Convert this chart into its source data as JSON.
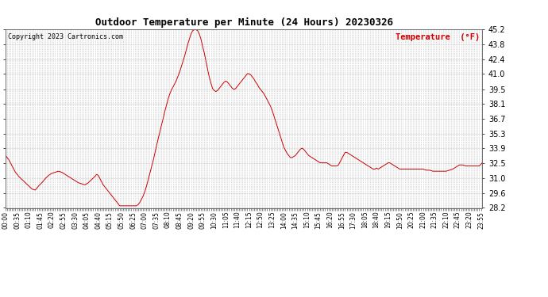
{
  "title": "Outdoor Temperature per Minute (24 Hours) 20230326",
  "copyright_text": "Copyright 2023 Cartronics.com",
  "legend_text": "Temperature  (°F)",
  "legend_color": "#cc0000",
  "line_color": "#cc0000",
  "background_color": "#ffffff",
  "grid_color": "#bbbbbb",
  "title_color": "#000000",
  "ylim": [
    28.2,
    45.2
  ],
  "yticks": [
    28.2,
    29.6,
    31.0,
    32.5,
    33.9,
    35.3,
    36.7,
    38.1,
    39.5,
    41.0,
    42.4,
    43.8,
    45.2
  ],
  "keypoints": [
    [
      0,
      33.2
    ],
    [
      10,
      32.8
    ],
    [
      20,
      32.2
    ],
    [
      30,
      31.6
    ],
    [
      40,
      31.2
    ],
    [
      50,
      30.9
    ],
    [
      60,
      30.6
    ],
    [
      70,
      30.3
    ],
    [
      80,
      30.0
    ],
    [
      90,
      29.9
    ],
    [
      100,
      30.3
    ],
    [
      110,
      30.6
    ],
    [
      120,
      31.0
    ],
    [
      130,
      31.3
    ],
    [
      140,
      31.5
    ],
    [
      150,
      31.6
    ],
    [
      160,
      31.7
    ],
    [
      170,
      31.6
    ],
    [
      180,
      31.4
    ],
    [
      190,
      31.2
    ],
    [
      200,
      31.0
    ],
    [
      210,
      30.8
    ],
    [
      220,
      30.6
    ],
    [
      230,
      30.5
    ],
    [
      240,
      30.4
    ],
    [
      250,
      30.6
    ],
    [
      260,
      30.9
    ],
    [
      270,
      31.2
    ],
    [
      275,
      31.4
    ],
    [
      280,
      31.3
    ],
    [
      285,
      31.0
    ],
    [
      290,
      30.7
    ],
    [
      295,
      30.4
    ],
    [
      300,
      30.2
    ],
    [
      305,
      30.0
    ],
    [
      310,
      29.8
    ],
    [
      315,
      29.6
    ],
    [
      320,
      29.4
    ],
    [
      325,
      29.2
    ],
    [
      330,
      29.0
    ],
    [
      335,
      28.8
    ],
    [
      340,
      28.6
    ],
    [
      345,
      28.4
    ],
    [
      370,
      28.4
    ],
    [
      395,
      28.4
    ],
    [
      400,
      28.5
    ],
    [
      405,
      28.7
    ],
    [
      410,
      29.0
    ],
    [
      415,
      29.3
    ],
    [
      420,
      29.7
    ],
    [
      425,
      30.2
    ],
    [
      430,
      30.8
    ],
    [
      435,
      31.4
    ],
    [
      440,
      32.0
    ],
    [
      445,
      32.6
    ],
    [
      450,
      33.3
    ],
    [
      455,
      34.0
    ],
    [
      460,
      34.7
    ],
    [
      465,
      35.3
    ],
    [
      470,
      36.0
    ],
    [
      475,
      36.6
    ],
    [
      480,
      37.3
    ],
    [
      485,
      37.9
    ],
    [
      490,
      38.5
    ],
    [
      495,
      39.0
    ],
    [
      500,
      39.4
    ],
    [
      505,
      39.7
    ],
    [
      510,
      40.0
    ],
    [
      515,
      40.3
    ],
    [
      520,
      40.7
    ],
    [
      525,
      41.1
    ],
    [
      530,
      41.6
    ],
    [
      535,
      42.1
    ],
    [
      540,
      42.6
    ],
    [
      545,
      43.2
    ],
    [
      550,
      43.8
    ],
    [
      555,
      44.3
    ],
    [
      560,
      44.8
    ],
    [
      565,
      45.1
    ],
    [
      570,
      45.2
    ],
    [
      575,
      45.2
    ],
    [
      580,
      45.1
    ],
    [
      585,
      44.8
    ],
    [
      590,
      44.3
    ],
    [
      595,
      43.6
    ],
    [
      600,
      43.0
    ],
    [
      605,
      42.2
    ],
    [
      610,
      41.4
    ],
    [
      615,
      40.7
    ],
    [
      620,
      40.1
    ],
    [
      625,
      39.6
    ],
    [
      630,
      39.4
    ],
    [
      635,
      39.3
    ],
    [
      640,
      39.4
    ],
    [
      645,
      39.6
    ],
    [
      650,
      39.8
    ],
    [
      655,
      40.0
    ],
    [
      660,
      40.2
    ],
    [
      665,
      40.3
    ],
    [
      670,
      40.2
    ],
    [
      675,
      40.0
    ],
    [
      680,
      39.8
    ],
    [
      685,
      39.6
    ],
    [
      690,
      39.5
    ],
    [
      695,
      39.6
    ],
    [
      700,
      39.8
    ],
    [
      705,
      40.0
    ],
    [
      710,
      40.2
    ],
    [
      715,
      40.4
    ],
    [
      720,
      40.6
    ],
    [
      725,
      40.8
    ],
    [
      730,
      41.0
    ],
    [
      735,
      41.0
    ],
    [
      740,
      40.9
    ],
    [
      745,
      40.7
    ],
    [
      750,
      40.5
    ],
    [
      755,
      40.2
    ],
    [
      760,
      40.0
    ],
    [
      765,
      39.7
    ],
    [
      770,
      39.5
    ],
    [
      775,
      39.3
    ],
    [
      780,
      39.1
    ],
    [
      785,
      38.8
    ],
    [
      790,
      38.5
    ],
    [
      795,
      38.2
    ],
    [
      800,
      37.9
    ],
    [
      805,
      37.5
    ],
    [
      810,
      37.0
    ],
    [
      815,
      36.5
    ],
    [
      820,
      36.0
    ],
    [
      825,
      35.5
    ],
    [
      830,
      35.0
    ],
    [
      835,
      34.5
    ],
    [
      840,
      34.0
    ],
    [
      845,
      33.7
    ],
    [
      850,
      33.4
    ],
    [
      855,
      33.2
    ],
    [
      860,
      33.0
    ],
    [
      865,
      33.0
    ],
    [
      870,
      33.1
    ],
    [
      875,
      33.2
    ],
    [
      880,
      33.4
    ],
    [
      885,
      33.6
    ],
    [
      890,
      33.8
    ],
    [
      895,
      33.9
    ],
    [
      900,
      33.8
    ],
    [
      905,
      33.6
    ],
    [
      910,
      33.4
    ],
    [
      915,
      33.2
    ],
    [
      920,
      33.1
    ],
    [
      925,
      33.0
    ],
    [
      930,
      32.9
    ],
    [
      935,
      32.8
    ],
    [
      940,
      32.7
    ],
    [
      945,
      32.6
    ],
    [
      950,
      32.5
    ],
    [
      960,
      32.5
    ],
    [
      970,
      32.5
    ],
    [
      975,
      32.4
    ],
    [
      980,
      32.3
    ],
    [
      985,
      32.2
    ],
    [
      990,
      32.2
    ],
    [
      995,
      32.2
    ],
    [
      1000,
      32.2
    ],
    [
      1005,
      32.3
    ],
    [
      1010,
      32.6
    ],
    [
      1015,
      32.9
    ],
    [
      1020,
      33.2
    ],
    [
      1025,
      33.5
    ],
    [
      1030,
      33.5
    ],
    [
      1035,
      33.4
    ],
    [
      1040,
      33.3
    ],
    [
      1045,
      33.2
    ],
    [
      1050,
      33.1
    ],
    [
      1055,
      33.0
    ],
    [
      1060,
      32.9
    ],
    [
      1065,
      32.8
    ],
    [
      1070,
      32.7
    ],
    [
      1075,
      32.6
    ],
    [
      1080,
      32.5
    ],
    [
      1085,
      32.4
    ],
    [
      1090,
      32.3
    ],
    [
      1095,
      32.2
    ],
    [
      1100,
      32.1
    ],
    [
      1105,
      32.0
    ],
    [
      1110,
      31.9
    ],
    [
      1115,
      31.9
    ],
    [
      1120,
      32.0
    ],
    [
      1125,
      31.9
    ],
    [
      1130,
      32.0
    ],
    [
      1135,
      32.1
    ],
    [
      1140,
      32.2
    ],
    [
      1145,
      32.3
    ],
    [
      1150,
      32.4
    ],
    [
      1155,
      32.5
    ],
    [
      1160,
      32.5
    ],
    [
      1165,
      32.4
    ],
    [
      1170,
      32.3
    ],
    [
      1175,
      32.2
    ],
    [
      1180,
      32.1
    ],
    [
      1185,
      32.0
    ],
    [
      1190,
      31.9
    ],
    [
      1195,
      31.9
    ],
    [
      1200,
      31.9
    ],
    [
      1210,
      31.9
    ],
    [
      1220,
      31.9
    ],
    [
      1230,
      31.9
    ],
    [
      1240,
      31.9
    ],
    [
      1250,
      31.9
    ],
    [
      1260,
      31.9
    ],
    [
      1270,
      31.8
    ],
    [
      1280,
      31.8
    ],
    [
      1290,
      31.7
    ],
    [
      1300,
      31.7
    ],
    [
      1310,
      31.7
    ],
    [
      1320,
      31.7
    ],
    [
      1330,
      31.7
    ],
    [
      1340,
      31.8
    ],
    [
      1350,
      31.9
    ],
    [
      1360,
      32.1
    ],
    [
      1370,
      32.3
    ],
    [
      1380,
      32.3
    ],
    [
      1390,
      32.2
    ],
    [
      1400,
      32.2
    ],
    [
      1410,
      32.2
    ],
    [
      1420,
      32.2
    ],
    [
      1430,
      32.2
    ],
    [
      1439,
      32.5
    ]
  ]
}
